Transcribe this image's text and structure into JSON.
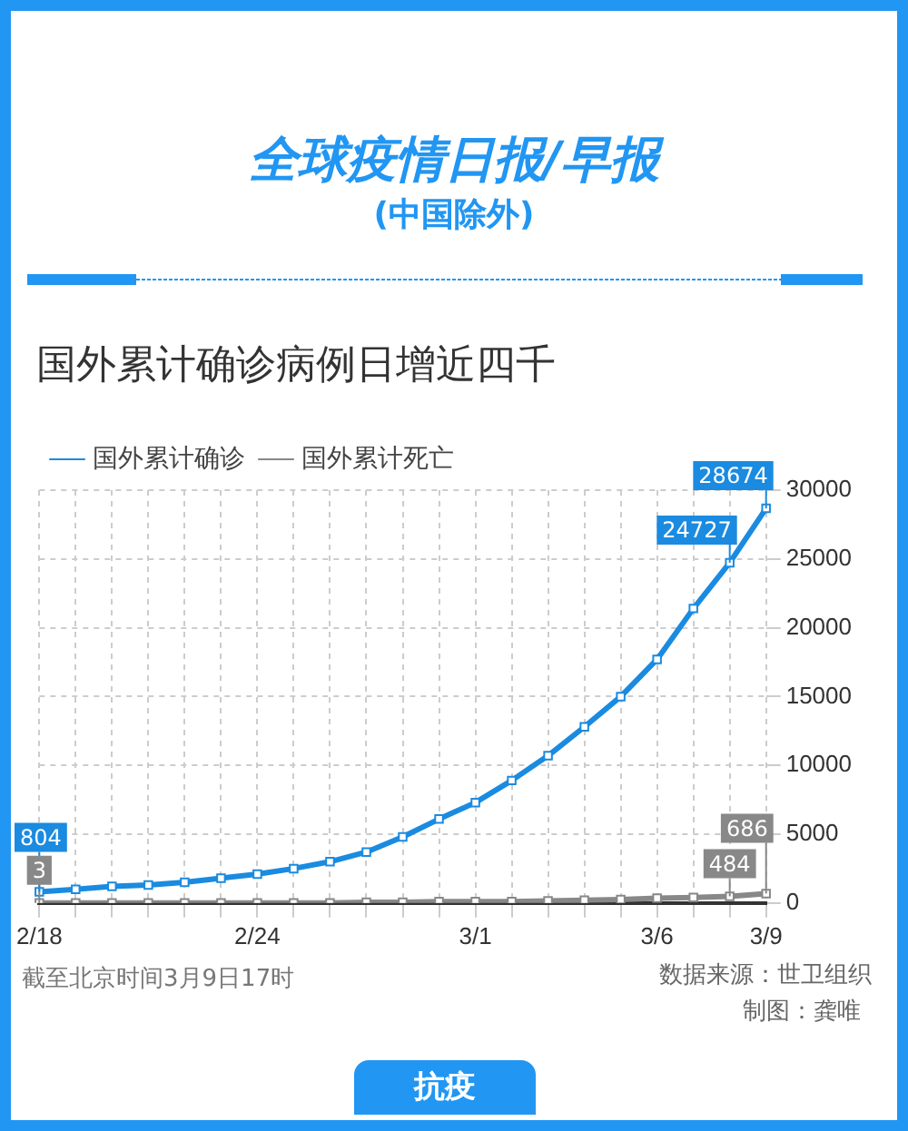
{
  "chart_data": {
    "type": "line",
    "title": "全球疫情日报/早报",
    "subtitle": "(中国除外)",
    "annotations": [
      "国外累计确诊病例日增近四千",
      "截至北京时间3月9日17时",
      "数据来源：世卫组织",
      "制图：龚唯",
      "抗疫"
    ],
    "categories": [
      "2/18",
      null,
      null,
      null,
      null,
      null,
      "2/24",
      null,
      null,
      null,
      null,
      null,
      "3/1",
      null,
      null,
      null,
      null,
      "3/6",
      null,
      null,
      "3/9"
    ],
    "series": [
      {
        "name": "国外累计确诊",
        "color": "#1a8be0",
        "values": [
          804,
          1000,
          1200,
          1300,
          1500,
          1800,
          2100,
          2500,
          3000,
          3700,
          4800,
          6100,
          7300,
          8900,
          10700,
          12800,
          15000,
          17700,
          21400,
          24727,
          28674
        ],
        "value_labels": [
          "804",
          null,
          null,
          null,
          null,
          null,
          null,
          null,
          null,
          null,
          null,
          null,
          null,
          null,
          null,
          null,
          null,
          null,
          null,
          "24727",
          "28674"
        ]
      },
      {
        "name": "国外累计死亡",
        "color": "#888888",
        "values": [
          3,
          0,
          0,
          0,
          0,
          0,
          0,
          0,
          0,
          50,
          50,
          100,
          100,
          100,
          150,
          200,
          250,
          350,
          400,
          484,
          686
        ],
        "value_labels": [
          "3",
          null,
          null,
          null,
          null,
          null,
          null,
          null,
          null,
          null,
          null,
          null,
          null,
          null,
          null,
          null,
          null,
          null,
          null,
          "484",
          "686"
        ]
      }
    ],
    "ylim": [
      0,
      30000
    ],
    "yticks": [
      0,
      5000,
      10000,
      15000,
      20000,
      25000,
      30000
    ],
    "grid": true,
    "legend": "top left",
    "marker": "square",
    "line_style": "solid"
  }
}
